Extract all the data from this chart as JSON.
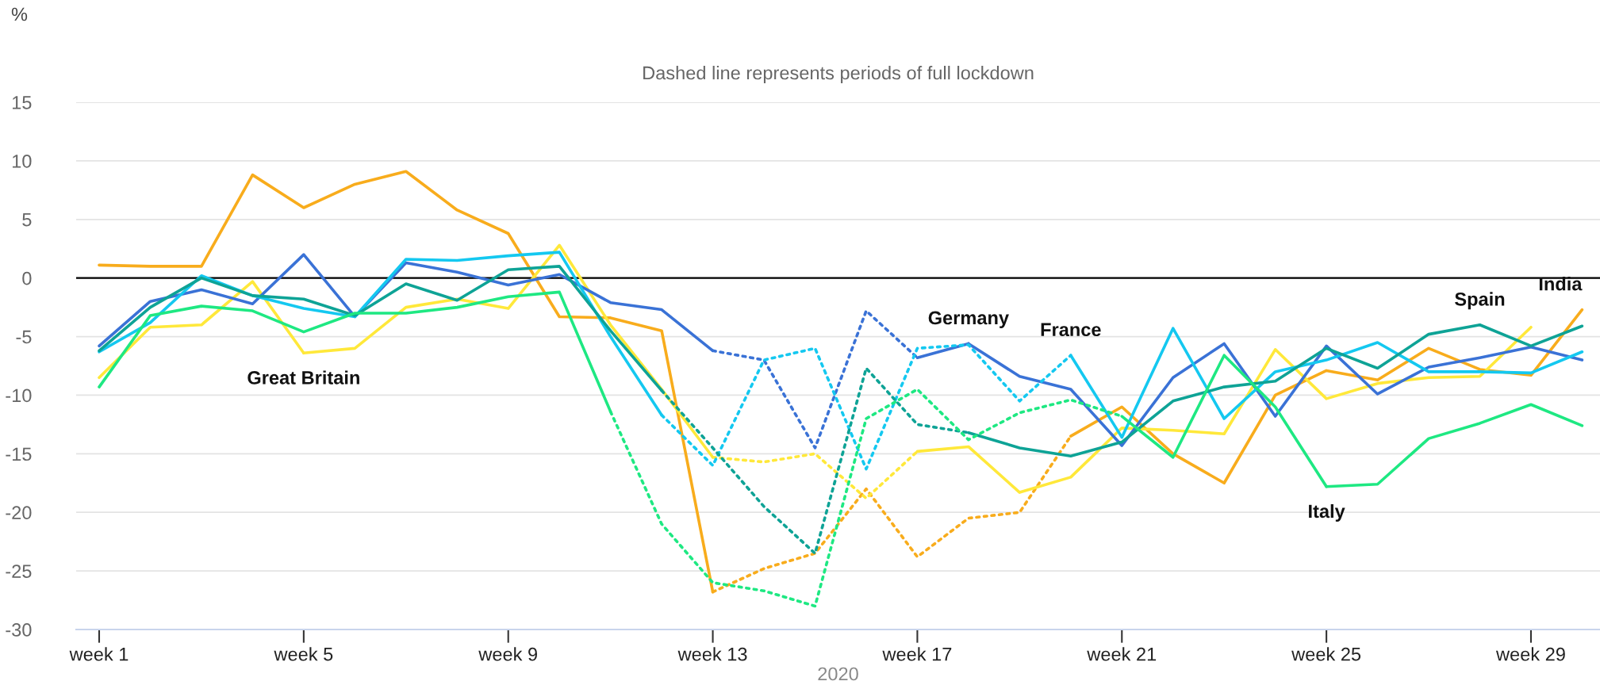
{
  "chart_data": {
    "type": "line",
    "subtitle": "Dashed line represents periods of full lockdown",
    "xlabel": "2020",
    "ylabel": "%",
    "categories": [
      "week 1",
      null,
      null,
      null,
      "week 5",
      null,
      null,
      null,
      "week 9",
      null,
      null,
      null,
      "week 13",
      null,
      null,
      null,
      "week 17",
      null,
      null,
      null,
      "week 21",
      null,
      null,
      null,
      "week 25",
      null,
      null,
      null,
      "week 29",
      null
    ],
    "ylim": [
      -30,
      15
    ],
    "yticks": [
      -30,
      -25,
      -20,
      -15,
      -10,
      -5,
      0,
      5,
      10,
      15
    ],
    "grid": "y",
    "legend": false,
    "marker": "none",
    "ref_lines": [
      {
        "axis": "y",
        "value": 0,
        "color": "#000000"
      }
    ],
    "series": [
      {
        "color": "#f8ac1c",
        "line_style": "solid",
        "values": [
          1.1,
          1.0,
          1.0,
          8.8,
          6.0,
          8.0,
          9.1,
          5.8,
          3.8,
          -3.3,
          -3.4,
          -4.5,
          -26.8,
          null,
          null,
          null,
          null,
          null,
          null,
          null,
          null,
          null,
          null,
          null,
          null,
          null,
          null,
          null,
          null,
          null
        ]
      },
      {
        "color": "#f8ac1c",
        "line_style": "dotted",
        "values": [
          null,
          null,
          null,
          null,
          null,
          null,
          null,
          null,
          null,
          null,
          null,
          null,
          -26.8,
          -24.8,
          -23.5,
          -18,
          -23.8,
          -20.5,
          -20,
          -13.5,
          null,
          null,
          null,
          null,
          null,
          null,
          null,
          null,
          null,
          null
        ]
      },
      {
        "name": "India",
        "color": "#f8ac1c",
        "line_style": "solid",
        "values": [
          null,
          null,
          null,
          null,
          null,
          null,
          null,
          null,
          null,
          null,
          null,
          null,
          null,
          null,
          null,
          null,
          null,
          null,
          null,
          -13.5,
          -11,
          -15,
          -17.5,
          -10,
          -7.9,
          -8.7,
          -6,
          -7.8,
          -8.3,
          -2.7
        ]
      },
      {
        "name": "Great Britain",
        "color": "#ffe83a",
        "line_style": "solid",
        "values": [
          -8.5,
          -4.2,
          -4.0,
          -0.3,
          -6.4,
          null,
          null,
          null,
          null,
          null,
          null,
          null,
          null,
          null,
          null,
          null,
          null,
          null,
          null,
          null,
          null,
          null,
          null,
          null,
          null,
          null,
          null,
          null,
          null,
          null
        ]
      },
      {
        "color": "#ffe83a",
        "line_style": "solid",
        "values": [
          null,
          null,
          null,
          null,
          -6.4,
          -6.0,
          -2.5,
          -1.8,
          -2.6,
          2.8,
          -4,
          -9.5,
          -15.3,
          null,
          null,
          null,
          null,
          null,
          null,
          null,
          null,
          null,
          null,
          null,
          null,
          null,
          null,
          null,
          null,
          null
        ]
      },
      {
        "color": "#ffe83a",
        "line_style": "dotted",
        "values": [
          null,
          null,
          null,
          null,
          null,
          null,
          null,
          null,
          null,
          null,
          null,
          null,
          -15.3,
          -15.7,
          -15,
          -18.8,
          -14.8,
          null,
          null,
          null,
          null,
          null,
          null,
          null,
          null,
          null,
          null,
          null,
          null,
          null
        ]
      },
      {
        "color": "#ffe83a",
        "line_style": "solid",
        "values": [
          null,
          null,
          null,
          null,
          null,
          null,
          null,
          null,
          null,
          null,
          null,
          null,
          null,
          null,
          null,
          null,
          -14.8,
          -14.4,
          -18.3,
          -17,
          -12.8,
          -13,
          -13.3,
          -6.1,
          -10.3,
          -9,
          -8.5,
          -8.4,
          -4.2,
          null
        ]
      },
      {
        "color": "#3a72d6",
        "line_style": "solid",
        "values": [
          -5.8,
          -2,
          -1,
          -2.2,
          2.0,
          -3.3,
          1.3,
          0.5,
          -0.6,
          0.3,
          -2.1,
          -2.7,
          -6.2,
          null,
          null,
          null,
          null,
          null,
          null,
          null,
          null,
          null,
          null,
          null,
          null,
          null,
          null,
          null,
          null,
          null
        ]
      },
      {
        "color": "#3a72d6",
        "line_style": "dotted",
        "values": [
          null,
          null,
          null,
          null,
          null,
          null,
          null,
          null,
          null,
          null,
          null,
          null,
          -6.2,
          -7,
          -14.5,
          -2.8,
          -6.8,
          null,
          null,
          null,
          null,
          null,
          null,
          null,
          null,
          null,
          null,
          null,
          null,
          null
        ]
      },
      {
        "name": "Germany",
        "color": "#3a72d6",
        "line_style": "solid",
        "values": [
          null,
          null,
          null,
          null,
          null,
          null,
          null,
          null,
          null,
          null,
          null,
          null,
          null,
          null,
          null,
          null,
          -6.8,
          -5.6,
          null,
          null,
          null,
          null,
          null,
          null,
          null,
          null,
          null,
          null,
          null,
          null
        ]
      },
      {
        "color": "#3a72d6",
        "line_style": "solid",
        "values": [
          null,
          null,
          null,
          null,
          null,
          null,
          null,
          null,
          null,
          null,
          null,
          null,
          null,
          null,
          null,
          null,
          null,
          -5.6,
          -8.4,
          -9.5,
          -14.3,
          -8.5,
          -5.6,
          -11.8,
          -5.8,
          -9.9,
          -7.6,
          -6.8,
          -5.9,
          -7.0
        ]
      },
      {
        "color": "#14c8f0",
        "line_style": "solid",
        "values": [
          -6.3,
          -3.8,
          0.2,
          -1.5,
          -2.6,
          -3.3,
          1.6,
          1.5,
          1.9,
          2.2,
          -5,
          -11.7,
          null,
          null,
          null,
          null,
          null,
          null,
          null,
          null,
          null,
          null,
          null,
          null,
          null,
          null,
          null,
          null,
          null,
          null
        ]
      },
      {
        "name": "France",
        "color": "#14c8f0",
        "line_style": "dotted",
        "values": [
          null,
          null,
          null,
          null,
          null,
          null,
          null,
          null,
          null,
          null,
          null,
          -11.7,
          -16,
          -7,
          -6,
          -16.3,
          -6,
          -5.7,
          -10.5,
          -6.6,
          null,
          null,
          null,
          null,
          null,
          null,
          null,
          null,
          null,
          null
        ]
      },
      {
        "color": "#14c8f0",
        "line_style": "solid",
        "values": [
          null,
          null,
          null,
          null,
          null,
          null,
          null,
          null,
          null,
          null,
          null,
          null,
          null,
          null,
          null,
          null,
          null,
          null,
          null,
          -6.6,
          -13.6,
          -4.3,
          -12,
          -8,
          -7.0,
          -5.5,
          -8,
          -8,
          -8.1,
          -6.3
        ]
      },
      {
        "color": "#0ea396",
        "line_style": "solid",
        "values": [
          -6.2,
          -2.5,
          0,
          -1.5,
          -1.8,
          -3.2,
          -0.5,
          -1.9,
          0.7,
          1.0,
          -4.5,
          -9.6,
          null,
          null,
          null,
          null,
          null,
          null,
          null,
          null,
          null,
          null,
          null,
          null,
          null,
          null,
          null,
          null,
          null,
          null
        ]
      },
      {
        "color": "#0ea396",
        "line_style": "dotted",
        "values": [
          null,
          null,
          null,
          null,
          null,
          null,
          null,
          null,
          null,
          null,
          null,
          -9.6,
          -14.5,
          -19.5,
          -23.5,
          -7.7,
          -12.5,
          -13.2,
          null,
          null,
          null,
          null,
          null,
          null,
          null,
          null,
          null,
          null,
          null,
          null
        ]
      },
      {
        "name": "Spain",
        "color": "#0ea396",
        "line_style": "solid",
        "values": [
          null,
          null,
          null,
          null,
          null,
          null,
          null,
          null,
          null,
          null,
          null,
          null,
          null,
          null,
          null,
          null,
          null,
          -13.2,
          -14.5,
          -15.2,
          -14,
          -10.5,
          -9.3,
          -8.8,
          -6,
          -7.7,
          -4.8,
          -4,
          null,
          null
        ]
      },
      {
        "color": "#0ea396",
        "line_style": "solid",
        "values": [
          null,
          null,
          null,
          null,
          null,
          null,
          null,
          null,
          null,
          null,
          null,
          null,
          null,
          null,
          null,
          null,
          null,
          null,
          null,
          null,
          null,
          null,
          null,
          null,
          null,
          null,
          null,
          -4,
          -5.8,
          -4.1
        ]
      },
      {
        "color": "#1ee882",
        "line_style": "solid",
        "values": [
          -9.3,
          -3.2,
          -2.4,
          -2.8,
          -4.6,
          -3.0,
          -3.0,
          -2.5,
          -1.6,
          -1.2,
          -11.4,
          null,
          null,
          null,
          null,
          null,
          null,
          null,
          null,
          null,
          null,
          null,
          null,
          null,
          null,
          null,
          null,
          null,
          null,
          null
        ]
      },
      {
        "color": "#1ee882",
        "line_style": "dotted",
        "values": [
          null,
          null,
          null,
          null,
          null,
          null,
          null,
          null,
          null,
          null,
          -11.4,
          -21,
          -26,
          -26.7,
          -28,
          -12,
          -9.5,
          -13.8,
          -11.5,
          -10.4,
          -11.8,
          null,
          null,
          null,
          null,
          null,
          null,
          null,
          null,
          null
        ]
      },
      {
        "name": "Italy",
        "color": "#1ee882",
        "line_style": "solid",
        "values": [
          null,
          null,
          null,
          null,
          null,
          null,
          null,
          null,
          null,
          null,
          null,
          null,
          null,
          null,
          null,
          null,
          null,
          null,
          null,
          null,
          -11.8,
          -15.3,
          -6.6,
          -11,
          -17.8,
          null,
          null,
          null,
          null,
          null
        ]
      },
      {
        "color": "#1ee882",
        "line_style": "solid",
        "values": [
          null,
          null,
          null,
          null,
          null,
          null,
          null,
          null,
          null,
          null,
          null,
          null,
          null,
          null,
          null,
          null,
          null,
          null,
          null,
          null,
          null,
          null,
          null,
          null,
          -17.8,
          -17.6,
          -13.7,
          -12.4,
          -10.8,
          -12.6
        ]
      }
    ]
  }
}
